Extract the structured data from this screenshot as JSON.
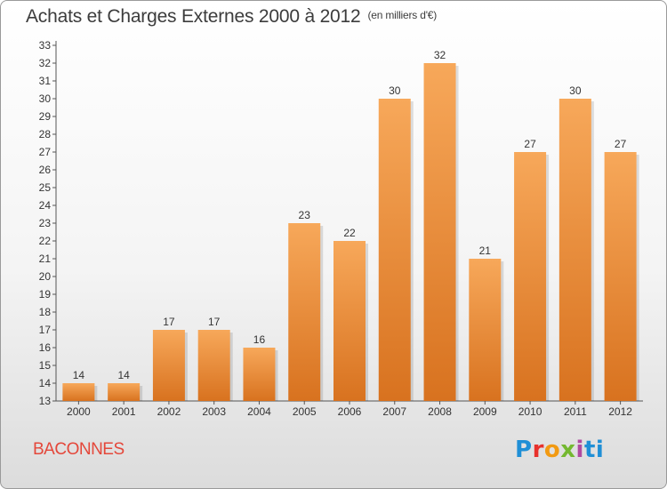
{
  "page": {
    "title": "Achats et Charges Externes 2000 à 2012",
    "subtitle": "(en milliers d'€)",
    "commune": "BACONNES",
    "logo_text": "Proxiti"
  },
  "colors": {
    "bar_light": "#f7a85a",
    "bar_dark": "#d8721f",
    "commune_text": "#e4473a",
    "axis": "#555555"
  },
  "chart_data": {
    "type": "bar",
    "title": "Achats et Charges Externes 2000 à 2012",
    "subtitle": "(en milliers d'€)",
    "categories": [
      "2000",
      "2001",
      "2002",
      "2003",
      "2004",
      "2005",
      "2006",
      "2007",
      "2008",
      "2009",
      "2010",
      "2011",
      "2012"
    ],
    "values": [
      14,
      14,
      17,
      17,
      16,
      23,
      22,
      30,
      32,
      21,
      27,
      30,
      27
    ],
    "ylim": [
      13,
      33
    ],
    "yticks": [
      13,
      14,
      15,
      16,
      17,
      18,
      19,
      20,
      21,
      22,
      23,
      24,
      25,
      26,
      27,
      28,
      29,
      30,
      31,
      32,
      33
    ],
    "grid": false,
    "legend": "none",
    "data_labels": true
  }
}
